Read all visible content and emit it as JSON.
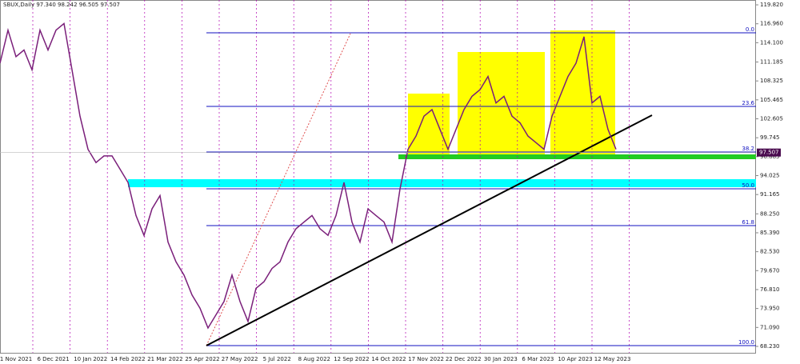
{
  "chart_data": {
    "type": "line",
    "title": "SBUX,Daily  97.340 98.242 96.505 97.507",
    "x_labels": [
      "1 Nov 2021",
      "6 Dec 2021",
      "10 Jan 2022",
      "14 Feb 2022",
      "21 Mar 2022",
      "25 Apr 2022",
      "27 May 2022",
      "5 Jul 2022",
      "8 Aug 2022",
      "12 Sep 2022",
      "14 Oct 2022",
      "17 Nov 2022",
      "22 Dec 2022",
      "30 Jan 2023",
      "6 Mar 2023",
      "10 Apr 2023",
      "12 May 2023"
    ],
    "series": [
      {
        "name": "SBUX",
        "color": "#7a1f7a",
        "values": [
          111,
          116,
          112,
          113,
          110,
          116,
          113,
          116,
          117,
          110,
          103,
          98,
          96,
          97,
          97,
          95,
          93,
          88,
          85,
          89,
          91,
          84,
          81,
          79,
          76,
          74,
          71,
          73,
          75,
          79,
          75,
          72,
          77,
          78,
          80,
          81,
          84,
          86,
          87,
          88,
          86,
          85,
          88,
          93,
          87,
          84,
          89,
          88,
          87,
          84,
          92,
          98,
          100,
          103,
          104,
          101,
          98,
          101,
          104,
          106,
          107,
          109,
          105,
          106,
          103,
          102,
          100,
          99,
          98,
          103,
          106,
          109,
          111,
          115,
          105,
          106,
          101,
          98
        ]
      }
    ],
    "ylim": [
      67.26,
      120.55
    ],
    "yticks": [
      {
        "value": 119.82,
        "label": "119.820"
      },
      {
        "value": 116.96,
        "label": "116.960"
      },
      {
        "value": 114.1,
        "label": "114.100"
      },
      111.185,
      108.325,
      105.465,
      102.605,
      99.745,
      96.885,
      94.025,
      91.165,
      {
        "value": 88.25,
        "label": "88.250"
      },
      {
        "value": 85.39,
        "label": "85.390"
      },
      {
        "value": 82.53,
        "label": "82.530"
      },
      {
        "value": 79.67,
        "label": "79.670"
      },
      {
        "value": 76.81,
        "label": "76.810"
      },
      {
        "value": 73.95,
        "label": "73.950"
      },
      {
        "value": 71.09,
        "label": "71.090"
      },
      {
        "value": 68.23,
        "label": "68.230"
      }
    ],
    "fib_levels": [
      {
        "value": 115.59,
        "label": "0.0"
      },
      {
        "value": 104.48,
        "label": "23.6"
      },
      {
        "value": 97.59,
        "label": "38.2"
      },
      {
        "value": 92.03,
        "label": "50.0"
      },
      {
        "value": 86.47,
        "label": "61.8"
      },
      {
        "value": 68.35,
        "label": "100.0"
      }
    ],
    "last_price": 97.507
  }
}
